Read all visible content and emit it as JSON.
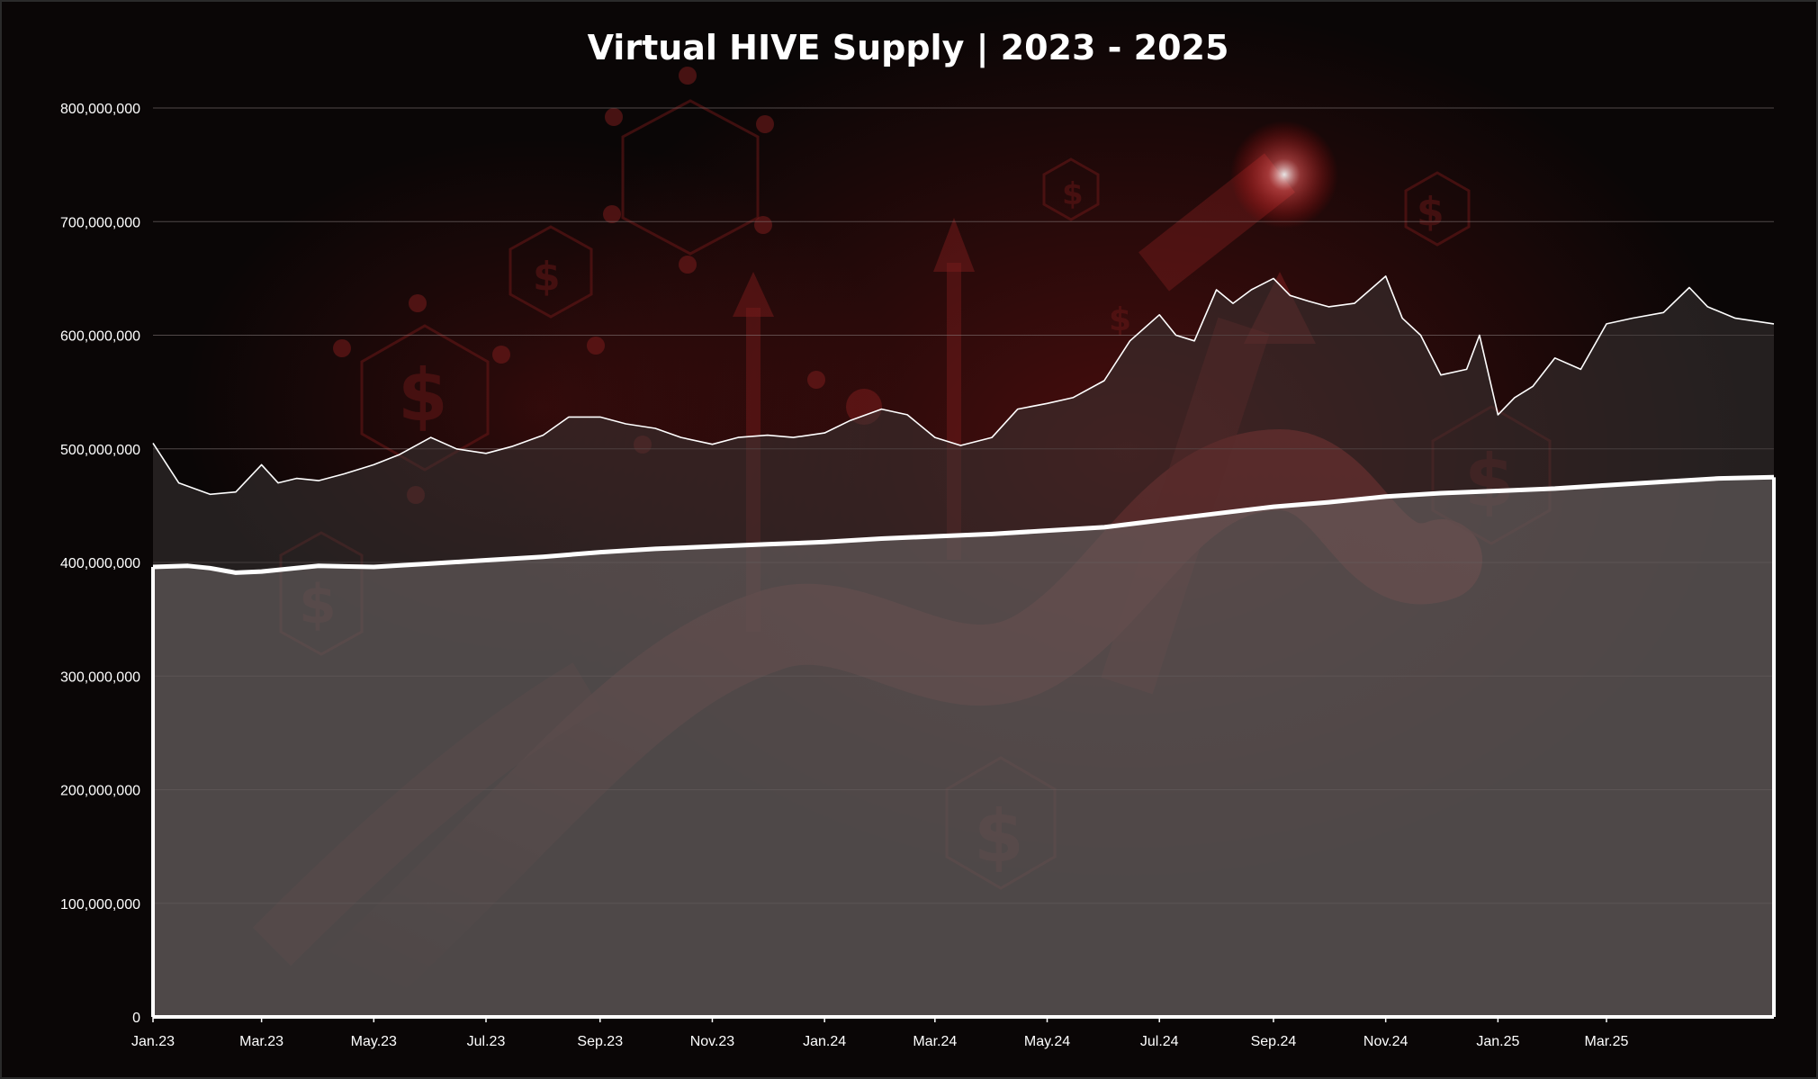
{
  "chart_data": {
    "type": "area",
    "title": "Virtual HIVE Supply | 2023 - 2025",
    "xlabel": "",
    "ylabel": "",
    "ylim": [
      0,
      800000000
    ],
    "yticks": [
      "0",
      "100,000,000",
      "200,000,000",
      "300,000,000",
      "400,000,000",
      "500,000,000",
      "600,000,000",
      "700,000,000",
      "800,000,000"
    ],
    "ytick_values": [
      0,
      100000000,
      200000000,
      300000000,
      400000000,
      500000000,
      600000000,
      700000000,
      800000000
    ],
    "xticks": [
      "Jan.23",
      "Mar.23",
      "May.23",
      "Jul.23",
      "Sep.23",
      "Nov.23",
      "Jan.24",
      "Mar.24",
      "May.24",
      "Jul.24",
      "Sep.24",
      "Nov.24",
      "Jan.25",
      "Mar.25"
    ],
    "grid": true,
    "legend": "none",
    "x_range": [
      "2023-01-01",
      "2025-05-31"
    ],
    "series": [
      {
        "color": "#ffffff",
        "style": "thin line with dark fill",
        "x": [
          "2023-01-01",
          "2023-01-15",
          "2023-02-01",
          "2023-02-15",
          "2023-03-01",
          "2023-03-10",
          "2023-03-20",
          "2023-04-01",
          "2023-04-15",
          "2023-05-01",
          "2023-05-15",
          "2023-06-01",
          "2023-06-15",
          "2023-07-01",
          "2023-07-15",
          "2023-08-01",
          "2023-08-15",
          "2023-09-01",
          "2023-09-15",
          "2023-10-01",
          "2023-10-15",
          "2023-11-01",
          "2023-11-15",
          "2023-12-01",
          "2023-12-15",
          "2024-01-01",
          "2024-01-15",
          "2024-02-01",
          "2024-02-15",
          "2024-03-01",
          "2024-03-15",
          "2024-04-01",
          "2024-04-15",
          "2024-05-01",
          "2024-05-15",
          "2024-06-01",
          "2024-06-15",
          "2024-07-01",
          "2024-07-10",
          "2024-07-20",
          "2024-08-01",
          "2024-08-10",
          "2024-08-20",
          "2024-09-01",
          "2024-09-10",
          "2024-09-20",
          "2024-10-01",
          "2024-10-15",
          "2024-11-01",
          "2024-11-10",
          "2024-11-20",
          "2024-12-01",
          "2024-12-15",
          "2024-12-22",
          "2025-01-01",
          "2025-01-10",
          "2025-01-20",
          "2025-02-01",
          "2025-02-15",
          "2025-03-01",
          "2025-03-15",
          "2025-04-01",
          "2025-04-15",
          "2025-04-25",
          "2025-05-10",
          "2025-05-31"
        ],
        "values": [
          505000000,
          470000000,
          460000000,
          462000000,
          486000000,
          470000000,
          474000000,
          472000000,
          478000000,
          486000000,
          495000000,
          510000000,
          500000000,
          496000000,
          502000000,
          512000000,
          528000000,
          528000000,
          522000000,
          518000000,
          510000000,
          504000000,
          510000000,
          512000000,
          510000000,
          514000000,
          525000000,
          535000000,
          530000000,
          510000000,
          503000000,
          510000000,
          535000000,
          540000000,
          545000000,
          560000000,
          595000000,
          618000000,
          600000000,
          595000000,
          640000000,
          628000000,
          640000000,
          650000000,
          635000000,
          630000000,
          625000000,
          628000000,
          652000000,
          615000000,
          600000000,
          565000000,
          570000000,
          600000000,
          530000000,
          545000000,
          555000000,
          580000000,
          570000000,
          610000000,
          615000000,
          620000000,
          642000000,
          625000000,
          615000000,
          610000000
        ]
      },
      {
        "color": "#ffffff",
        "style": "thick line with light fill",
        "x": [
          "2023-01-01",
          "2023-01-20",
          "2023-02-01",
          "2023-02-15",
          "2023-03-01",
          "2023-04-01",
          "2023-05-01",
          "2023-06-01",
          "2023-07-01",
          "2023-08-01",
          "2023-09-01",
          "2023-10-01",
          "2023-11-01",
          "2023-12-01",
          "2024-01-01",
          "2024-02-01",
          "2024-03-01",
          "2024-04-01",
          "2024-05-01",
          "2024-06-01",
          "2024-07-01",
          "2024-08-01",
          "2024-09-01",
          "2024-10-01",
          "2024-11-01",
          "2024-12-01",
          "2025-01-01",
          "2025-02-01",
          "2025-03-01",
          "2025-04-01",
          "2025-05-01",
          "2025-05-31"
        ],
        "values": [
          396000000,
          397000000,
          395000000,
          391000000,
          392000000,
          397000000,
          396000000,
          399000000,
          402000000,
          405000000,
          409000000,
          412000000,
          414000000,
          416000000,
          418000000,
          421000000,
          423000000,
          425000000,
          428000000,
          431000000,
          437000000,
          443000000,
          449000000,
          453000000,
          458000000,
          461000000,
          463000000,
          465000000,
          468000000,
          471000000,
          474000000,
          475000000
        ]
      }
    ]
  }
}
